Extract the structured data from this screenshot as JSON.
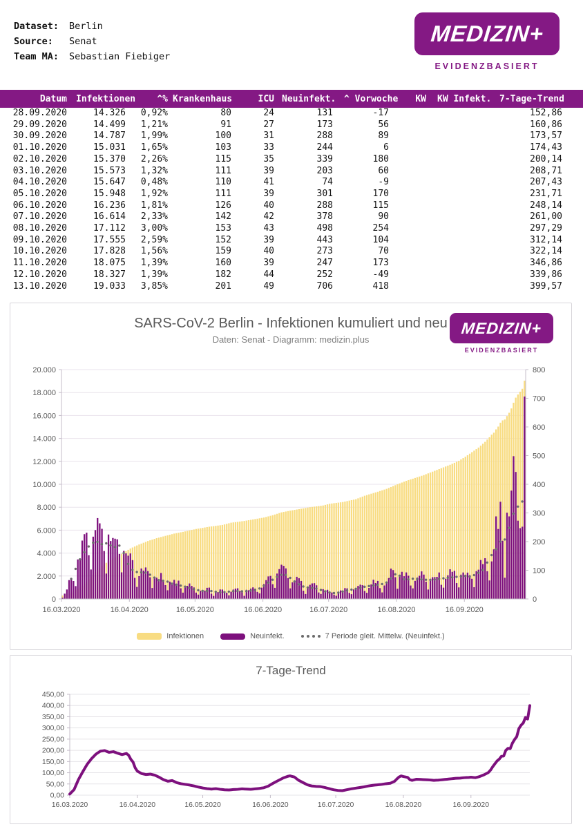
{
  "brand": {
    "logo_text": "MEDIZIN+",
    "tagline": "EVIDENZBASIERT",
    "purple": "#841984",
    "bar_purple": "#7d107d",
    "bar_yellow": "#f8dc82",
    "ma_dot_gray": "#6a6a6a",
    "axis_text_gray": "#595959"
  },
  "meta": {
    "rows": [
      {
        "label": "Dataset:",
        "value": "Berlin"
      },
      {
        "label": "Source:",
        "value": "Senat"
      },
      {
        "label": "Team MA:",
        "value": "Sebastian Fiebiger"
      }
    ]
  },
  "table": {
    "columns": [
      "Datum",
      "Infektionen",
      "^%",
      "Krankenhaus",
      "ICU",
      "Neuinfekt.",
      "^ Vorwoche",
      "KW",
      "KW Infekt.",
      "7-Tage-Trend"
    ],
    "rows": [
      [
        "28.09.2020",
        "14.326",
        "0,92%",
        "80",
        "24",
        "131",
        "-17",
        "",
        "",
        "152,86"
      ],
      [
        "29.09.2020",
        "14.499",
        "1,21%",
        "91",
        "27",
        "173",
        "56",
        "",
        "",
        "160,86"
      ],
      [
        "30.09.2020",
        "14.787",
        "1,99%",
        "100",
        "31",
        "288",
        "89",
        "",
        "",
        "173,57"
      ],
      [
        "01.10.2020",
        "15.031",
        "1,65%",
        "103",
        "33",
        "244",
        "6",
        "",
        "",
        "174,43"
      ],
      [
        "02.10.2020",
        "15.370",
        "2,26%",
        "115",
        "35",
        "339",
        "180",
        "",
        "",
        "200,14"
      ],
      [
        "03.10.2020",
        "15.573",
        "1,32%",
        "111",
        "39",
        "203",
        "60",
        "",
        "",
        "208,71"
      ],
      [
        "04.10.2020",
        "15.647",
        "0,48%",
        "110",
        "41",
        "74",
        "-9",
        "",
        "",
        "207,43"
      ],
      [
        "05.10.2020",
        "15.948",
        "1,92%",
        "111",
        "39",
        "301",
        "170",
        "",
        "",
        "231,71"
      ],
      [
        "06.10.2020",
        "16.236",
        "1,81%",
        "126",
        "40",
        "288",
        "115",
        "",
        "",
        "248,14"
      ],
      [
        "07.10.2020",
        "16.614",
        "2,33%",
        "142",
        "42",
        "378",
        "90",
        "",
        "",
        "261,00"
      ],
      [
        "08.10.2020",
        "17.112",
        "3,00%",
        "153",
        "43",
        "498",
        "254",
        "",
        "",
        "297,29"
      ],
      [
        "09.10.2020",
        "17.555",
        "2,59%",
        "152",
        "39",
        "443",
        "104",
        "",
        "",
        "312,14"
      ],
      [
        "10.10.2020",
        "17.828",
        "1,56%",
        "159",
        "40",
        "273",
        "70",
        "",
        "",
        "322,14"
      ],
      [
        "11.10.2020",
        "18.075",
        "1,39%",
        "160",
        "39",
        "247",
        "173",
        "",
        "",
        "346,86"
      ],
      [
        "12.10.2020",
        "18.327",
        "1,39%",
        "182",
        "44",
        "252",
        "-49",
        "",
        "",
        "339,86"
      ],
      [
        "13.10.2020",
        "19.033",
        "3,85%",
        "201",
        "49",
        "706",
        "418",
        "",
        "",
        "399,57"
      ]
    ]
  },
  "chart_data": [
    {
      "type": "bar",
      "title": "SARS-CoV-2 Berlin - Infektionen kumuliert und neu",
      "subtitle": "Daten: Senat - Diagramm: medizin.plus",
      "x_start": "16.03.2020",
      "x_end": "13.10.2020",
      "days_total": 212,
      "x_tick_labels": [
        "16.03.2020",
        "16.04.2020",
        "16.05.2020",
        "16.06.2020",
        "16.07.2020",
        "16.08.2020",
        "16.09.2020"
      ],
      "x_tick_days": [
        0,
        31,
        61,
        92,
        122,
        153,
        184
      ],
      "left_axis": {
        "series": "Infektionen (kumuliert)",
        "min": 0,
        "max": 20000,
        "step": 2000
      },
      "right_axis": {
        "series": "Neuinfekt. / 7-Tage-Mittel",
        "min": 0,
        "max": 800,
        "step": 100
      },
      "legend": [
        "Infektionen",
        "Neuinfekt.",
        "7 Periode gleit. Mittelw. (Neuinfekt.)"
      ],
      "grid": true,
      "series": {
        "infektionen_kumuliert_keypoints": [
          [
            0,
            300
          ],
          [
            4,
            550
          ],
          [
            8,
            1000
          ],
          [
            12,
            1700
          ],
          [
            16,
            2550
          ],
          [
            20,
            3150
          ],
          [
            24,
            3650
          ],
          [
            28,
            4050
          ],
          [
            31,
            4400
          ],
          [
            35,
            4750
          ],
          [
            39,
            5050
          ],
          [
            43,
            5300
          ],
          [
            47,
            5500
          ],
          [
            51,
            5700
          ],
          [
            55,
            5850
          ],
          [
            61,
            6100
          ],
          [
            67,
            6300
          ],
          [
            73,
            6450
          ],
          [
            77,
            6650
          ],
          [
            83,
            6800
          ],
          [
            89,
            7000
          ],
          [
            92,
            7100
          ],
          [
            96,
            7300
          ],
          [
            100,
            7550
          ],
          [
            104,
            7700
          ],
          [
            107,
            7800
          ],
          [
            113,
            8000
          ],
          [
            119,
            8150
          ],
          [
            122,
            8300
          ],
          [
            128,
            8450
          ],
          [
            134,
            8700
          ],
          [
            138,
            9000
          ],
          [
            144,
            9350
          ],
          [
            148,
            9600
          ],
          [
            153,
            10000
          ],
          [
            157,
            10300
          ],
          [
            161,
            10550
          ],
          [
            165,
            10800
          ],
          [
            169,
            11100
          ],
          [
            173,
            11400
          ],
          [
            177,
            11700
          ],
          [
            181,
            12050
          ],
          [
            184,
            12400
          ],
          [
            187,
            12800
          ],
          [
            190,
            13200
          ],
          [
            193,
            13700
          ],
          [
            195,
            14100
          ],
          [
            196,
            14326
          ],
          [
            197,
            14499
          ],
          [
            198,
            14787
          ],
          [
            199,
            15031
          ],
          [
            200,
            15370
          ],
          [
            201,
            15573
          ],
          [
            202,
            15647
          ],
          [
            203,
            15948
          ],
          [
            204,
            16236
          ],
          [
            205,
            16614
          ],
          [
            206,
            17112
          ],
          [
            207,
            17555
          ],
          [
            208,
            17828
          ],
          [
            209,
            18075
          ],
          [
            210,
            18327
          ],
          [
            211,
            19033
          ]
        ],
        "trend_7d_keypoints": [
          [
            0,
            5
          ],
          [
            2,
            25
          ],
          [
            4,
            70
          ],
          [
            6,
            105
          ],
          [
            8,
            138
          ],
          [
            10,
            163
          ],
          [
            12,
            183
          ],
          [
            14,
            196
          ],
          [
            16,
            199
          ],
          [
            18,
            191
          ],
          [
            20,
            194
          ],
          [
            22,
            187
          ],
          [
            24,
            181
          ],
          [
            26,
            186
          ],
          [
            27,
            178
          ],
          [
            28,
            160
          ],
          [
            29,
            148
          ],
          [
            30,
            122
          ],
          [
            31,
            107
          ],
          [
            33,
            96
          ],
          [
            35,
            92
          ],
          [
            37,
            94
          ],
          [
            39,
            89
          ],
          [
            41,
            80
          ],
          [
            43,
            69
          ],
          [
            45,
            62
          ],
          [
            47,
            65
          ],
          [
            49,
            56
          ],
          [
            51,
            51
          ],
          [
            53,
            48
          ],
          [
            55,
            45
          ],
          [
            57,
            41
          ],
          [
            59,
            36
          ],
          [
            61,
            32
          ],
          [
            63,
            29
          ],
          [
            65,
            27
          ],
          [
            67,
            29
          ],
          [
            69,
            26
          ],
          [
            71,
            24
          ],
          [
            73,
            23
          ],
          [
            75,
            25
          ],
          [
            77,
            26
          ],
          [
            79,
            28
          ],
          [
            81,
            27
          ],
          [
            83,
            26
          ],
          [
            85,
            28
          ],
          [
            87,
            30
          ],
          [
            89,
            33
          ],
          [
            91,
            40
          ],
          [
            92,
            46
          ],
          [
            94,
            57
          ],
          [
            96,
            67
          ],
          [
            98,
            77
          ],
          [
            100,
            84
          ],
          [
            101,
            86
          ],
          [
            103,
            81
          ],
          [
            105,
            66
          ],
          [
            107,
            56
          ],
          [
            109,
            46
          ],
          [
            111,
            41
          ],
          [
            113,
            39
          ],
          [
            115,
            38
          ],
          [
            117,
            34
          ],
          [
            119,
            29
          ],
          [
            121,
            24
          ],
          [
            123,
            21
          ],
          [
            125,
            20
          ],
          [
            127,
            24
          ],
          [
            129,
            28
          ],
          [
            131,
            31
          ],
          [
            133,
            34
          ],
          [
            135,
            37
          ],
          [
            137,
            41
          ],
          [
            139,
            44
          ],
          [
            141,
            46
          ],
          [
            143,
            48
          ],
          [
            145,
            51
          ],
          [
            147,
            53
          ],
          [
            149,
            62
          ],
          [
            150,
            72
          ],
          [
            151,
            81
          ],
          [
            152,
            86
          ],
          [
            153,
            83
          ],
          [
            155,
            79
          ],
          [
            156,
            69
          ],
          [
            157,
            66
          ],
          [
            159,
            71
          ],
          [
            161,
            70
          ],
          [
            163,
            69
          ],
          [
            165,
            68
          ],
          [
            167,
            66
          ],
          [
            169,
            67
          ],
          [
            171,
            69
          ],
          [
            173,
            71
          ],
          [
            175,
            73
          ],
          [
            177,
            75
          ],
          [
            179,
            76
          ],
          [
            181,
            78
          ],
          [
            183,
            79
          ],
          [
            184,
            80
          ],
          [
            186,
            78
          ],
          [
            188,
            83
          ],
          [
            190,
            91
          ],
          [
            192,
            101
          ],
          [
            193,
            112
          ],
          [
            194,
            127
          ],
          [
            195,
            140
          ],
          [
            196,
            152.86
          ],
          [
            197,
            160.86
          ],
          [
            198,
            173.57
          ],
          [
            199,
            174.43
          ],
          [
            200,
            200.14
          ],
          [
            201,
            208.71
          ],
          [
            202,
            207.43
          ],
          [
            203,
            231.71
          ],
          [
            204,
            248.14
          ],
          [
            205,
            261.0
          ],
          [
            206,
            297.29
          ],
          [
            207,
            312.14
          ],
          [
            208,
            322.14
          ],
          [
            209,
            346.86
          ],
          [
            210,
            339.86
          ],
          [
            211,
            399.57
          ]
        ],
        "neuinfekt_exact_tail": {
          "start_day": 196,
          "values": [
            131,
            173,
            288,
            244,
            339,
            203,
            74,
            301,
            288,
            378,
            498,
            443,
            273,
            247,
            252,
            706
          ]
        },
        "weekday_factors": [
          1.02,
          1.12,
          1.24,
          1.28,
          1.18,
          0.78,
          0.48
        ]
      }
    },
    {
      "type": "line",
      "title": "7-Tage-Trend",
      "y_axis": {
        "min": 0,
        "max": 450,
        "step": 50
      },
      "x_tick_labels": [
        "16.03.2020",
        "16.04.2020",
        "16.05.2020",
        "16.06.2020",
        "16.07.2020",
        "16.08.2020",
        "16.09.2020"
      ],
      "x_tick_days": [
        0,
        31,
        61,
        92,
        122,
        153,
        184
      ],
      "days_total": 212,
      "line_color": "#7d107d",
      "series_note": "same 7-day moving average series as chart 1 (trend_7d_keypoints), last 16 values exact from table"
    }
  ]
}
